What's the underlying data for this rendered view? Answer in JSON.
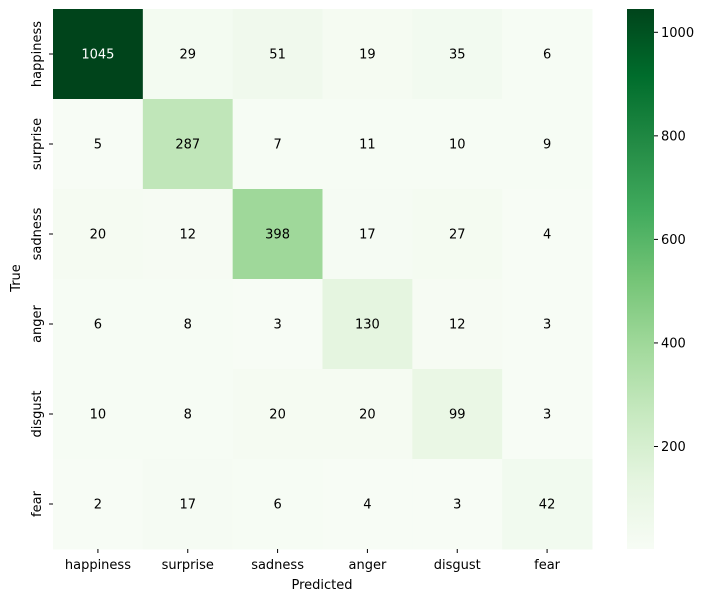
{
  "chart_data": {
    "type": "heatmap",
    "title": "",
    "xlabel": "Predicted",
    "ylabel": "True",
    "x_categories": [
      "happiness",
      "surprise",
      "sadness",
      "anger",
      "disgust",
      "fear"
    ],
    "y_categories": [
      "happiness",
      "surprise",
      "sadness",
      "anger",
      "disgust",
      "fear"
    ],
    "values": [
      [
        1045,
        29,
        51,
        19,
        35,
        6
      ],
      [
        5,
        287,
        7,
        11,
        10,
        9
      ],
      [
        20,
        12,
        398,
        17,
        27,
        4
      ],
      [
        6,
        8,
        3,
        130,
        12,
        3
      ],
      [
        10,
        8,
        20,
        20,
        99,
        3
      ],
      [
        2,
        17,
        6,
        4,
        3,
        42
      ]
    ],
    "colormap": "Greens",
    "color_range": [
      2,
      1045
    ],
    "colorbar_ticks": [
      200,
      400,
      600,
      800,
      1000
    ]
  }
}
